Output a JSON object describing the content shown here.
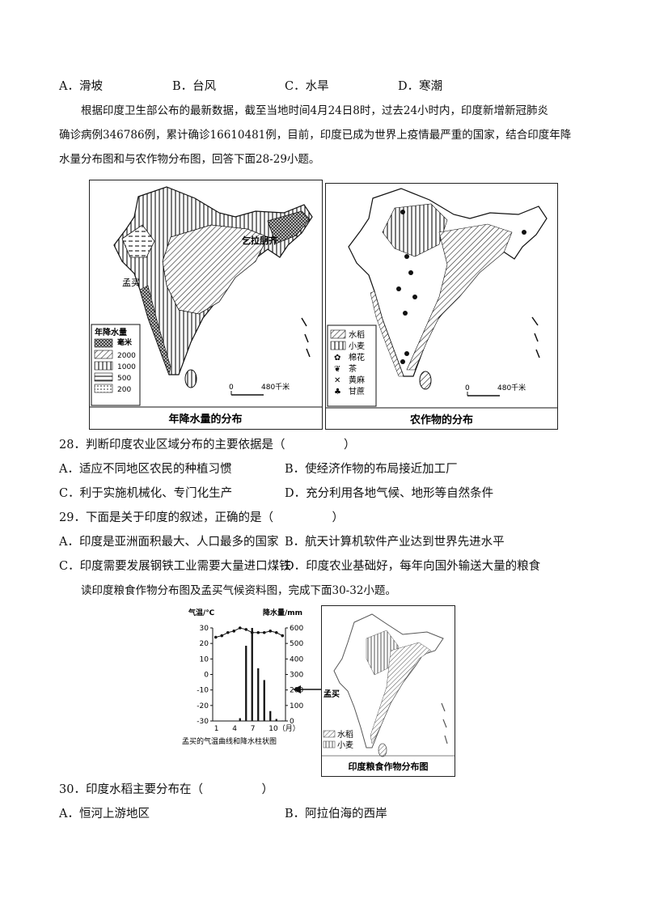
{
  "q27_options": [
    "A．滑坡",
    "B．台风",
    "C．水旱",
    "D．寒潮"
  ],
  "intro_28_29": [
    "根据印度卫生部公布的最新数据，截至当地时间4月24日8时，过去24小时内，印度新增新冠肺炎",
    "确诊病例346786例，累计确诊16610481例，目前，印度已成为世界上疫情最严重的国家，结合印度年降",
    "水量分布图和与农作物分布图，回答下面28-29小题。"
  ],
  "map_left": {
    "caption": "年降水量的分布",
    "label_mumbai": "孟买",
    "label_cherrapunji": "乞拉朋齐",
    "legend_title": "年降水量",
    "legend_unit": "毫米",
    "legend_values": [
      "2000",
      "1000",
      "500",
      "200"
    ],
    "scale_zero": "0",
    "scale_km": "480千米"
  },
  "map_right": {
    "caption": "农作物的分布",
    "legend": [
      "水稻",
      "小麦",
      "棉花",
      "茶",
      "黄麻",
      "甘蔗"
    ],
    "scale_zero": "0",
    "scale_km": "480千米"
  },
  "q28": {
    "stem": "28．判断印度农业区域分布的主要依据是（　　　　　）",
    "a": "A．适应不同地区农民的种植习惯",
    "b": "B．使经济作物的布局接近加工厂",
    "c": "C．利于实施机械化、专门化生产",
    "d": "D．充分利用各地气候、地形等自然条件"
  },
  "q29": {
    "stem": "29．下面是关于印度的叙述，正确的是（　　　　　）",
    "a": "A．印度是亚洲面积最大、人口最多的国家",
    "b": "B．航天计算机软件产业达到世界先进水平",
    "c": "C．印度需要发展钢铁工业需要大量进口煤铁",
    "d": "D．印度农业基础好，每年向国外输送大量的粮食"
  },
  "intro_30_32": "读印度粮食作物分布图及孟买气候资料图，完成下面30-32小题。",
  "climate_chart": {
    "caption": "孟买的气温曲线和降水柱状图",
    "temp_label": "气温/℃",
    "precip_label": "降水量/mm",
    "temp_ticks": [
      "30",
      "20",
      "10",
      "0",
      "-10",
      "-20",
      "-30"
    ],
    "precip_ticks": [
      "600",
      "500",
      "400",
      "300",
      "200",
      "100",
      "0"
    ],
    "month_ticks": [
      "1",
      "4",
      "7",
      "10（月）"
    ]
  },
  "chart_data": {
    "type": "bar",
    "categories": [
      "1",
      "2",
      "3",
      "4",
      "5",
      "6",
      "7",
      "8",
      "9",
      "10",
      "11",
      "12"
    ],
    "series": [
      {
        "name": "降水量/mm",
        "values": [
          2,
          1,
          0,
          2,
          18,
          485,
          617,
          340,
          264,
          64,
          13,
          3
        ]
      },
      {
        "name": "气温/℃",
        "values": [
          24,
          25,
          27,
          28,
          30,
          29,
          27,
          27,
          27,
          28,
          27,
          25
        ]
      }
    ],
    "ylim_temp": [
      -30,
      30
    ],
    "ylim_precip": [
      0,
      600
    ]
  },
  "map_crop": {
    "caption": "印度粮食作物分布图",
    "label_mumbai": "孟买",
    "legend": [
      "水稻",
      "小麦"
    ]
  },
  "q30": {
    "stem": "30．印度水稻主要分布在（　　　　　）",
    "a": "A．恒河上游地区",
    "b": "B．阿拉伯海的西岸"
  }
}
